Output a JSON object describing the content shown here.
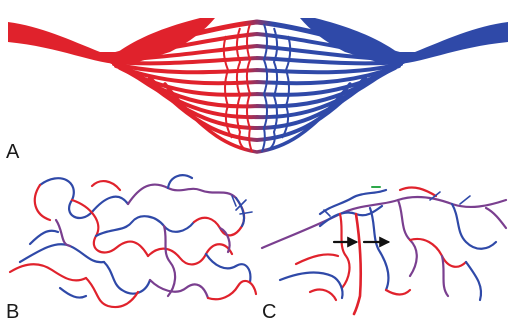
{
  "panels": [
    {
      "id": "A",
      "label": "A"
    },
    {
      "id": "B",
      "label": "B"
    },
    {
      "id": "C",
      "label": "C"
    }
  ],
  "colors": {
    "arterial": "#e0222c",
    "venous": "#2f49a8",
    "mixed": "#7a3f8f",
    "arrow": "#111111",
    "marker_green": "#2ea84a",
    "background": "#ffffff"
  },
  "icons": {
    "flow_arrow": "arrow-right-icon"
  }
}
